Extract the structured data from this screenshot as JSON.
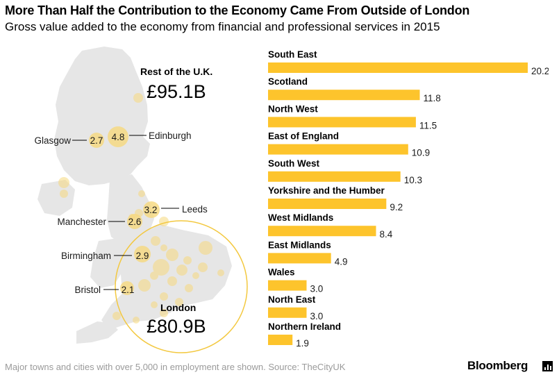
{
  "title": "More Than Half the Contribution to the Economy Came From Outside of London",
  "subtitle": "Gross value added to the economy from financial and professional services in 2015",
  "footer": "Major towns and cities with over 5,000 in employment are shown. Source: TheCityUK",
  "brand": "Bloomberg",
  "colors": {
    "bar": "#fdc42c",
    "land": "#e6e6e6",
    "bubble": "#f7d97e",
    "ring": "#f3c83f"
  },
  "map": {
    "rest_of_uk": {
      "label": "Rest of the U.K.",
      "value": "£95.1B"
    },
    "london": {
      "label": "London",
      "value": "£80.9B"
    },
    "cities": [
      {
        "name": "Glasgow",
        "value": "2.7"
      },
      {
        "name": "Edinburgh",
        "value": "4.8"
      },
      {
        "name": "Leeds",
        "value": "3.2"
      },
      {
        "name": "Manchester",
        "value": "2.6"
      },
      {
        "name": "Birmingham",
        "value": "2.9"
      },
      {
        "name": "Bristol",
        "value": "2.1"
      }
    ]
  },
  "chart_data": {
    "type": "bar",
    "orientation": "horizontal",
    "categories": [
      "South East",
      "Scotland",
      "North West",
      "East of England",
      "South West",
      "Yorkshire and the Humber",
      "West Midlands",
      "East Midlands",
      "Wales",
      "North East",
      "Northern Ireland"
    ],
    "values": [
      20.2,
      11.8,
      11.5,
      10.9,
      10.3,
      9.2,
      8.4,
      4.9,
      3.0,
      3.0,
      1.9
    ],
    "value_labels": [
      "20.2",
      "11.8",
      "11.5",
      "10.9",
      "10.3",
      "9.2",
      "8.4",
      "4.9",
      "3.0",
      "3.0",
      "1.9"
    ],
    "title": "",
    "xlim": [
      0,
      20.2
    ],
    "grid": false,
    "legend": "none"
  }
}
